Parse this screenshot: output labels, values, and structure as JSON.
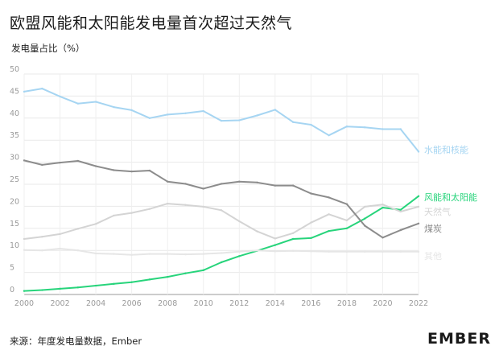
{
  "title": "欧盟风能和太阳能发电量首次超过天然气",
  "subtitle": "发电量占比（%）",
  "source": "来源：年度发电量数据，Ember",
  "logo": "EMBER",
  "chart_data": {
    "type": "line",
    "title": "欧盟风能和太阳能发电量首次超过天然气",
    "ylabel": "发电量占比（%）",
    "xlabel": "",
    "x": [
      2000,
      2001,
      2002,
      2003,
      2004,
      2005,
      2006,
      2007,
      2008,
      2009,
      2010,
      2011,
      2012,
      2013,
      2014,
      2015,
      2016,
      2017,
      2018,
      2019,
      2020,
      2021,
      2022
    ],
    "xticks": [
      2000,
      2002,
      2004,
      2006,
      2008,
      2010,
      2012,
      2014,
      2016,
      2018,
      2020,
      2022
    ],
    "yticks": [
      0,
      5,
      10,
      15,
      20,
      25,
      30,
      35,
      40,
      45,
      50
    ],
    "ylim": [
      0,
      50
    ],
    "xlim": [
      2000,
      2022
    ],
    "grid": true,
    "series": [
      {
        "name": "水能和核能",
        "color": "#a6d5f2",
        "values": [
          46.0,
          46.7,
          44.9,
          43.3,
          43.7,
          42.5,
          41.8,
          40.0,
          40.8,
          41.1,
          41.6,
          39.4,
          39.5,
          40.6,
          41.9,
          39.1,
          38.5,
          36.1,
          38.1,
          37.9,
          37.5,
          37.5,
          32.4
        ]
      },
      {
        "name": "风能和太阳能",
        "color": "#27d47b",
        "values": [
          0.8,
          1.0,
          1.3,
          1.6,
          2.0,
          2.4,
          2.8,
          3.4,
          4.0,
          4.8,
          5.5,
          7.3,
          8.7,
          9.9,
          11.2,
          12.6,
          12.8,
          14.4,
          15.0,
          17.2,
          19.7,
          19.2,
          22.3
        ]
      },
      {
        "name": "天然气",
        "color": "#d4d4d4",
        "values": [
          12.6,
          13.1,
          13.7,
          14.9,
          16.0,
          17.9,
          18.5,
          19.4,
          20.6,
          20.3,
          19.9,
          19.1,
          16.6,
          14.3,
          12.7,
          13.9,
          16.3,
          18.2,
          16.8,
          19.9,
          20.4,
          18.8,
          19.9
        ]
      },
      {
        "name": "煤炭",
        "color": "#8c8c8c",
        "values": [
          30.4,
          29.4,
          29.9,
          30.3,
          29.1,
          28.2,
          27.9,
          28.1,
          25.6,
          25.1,
          24.0,
          25.1,
          25.6,
          25.4,
          24.7,
          24.7,
          22.9,
          22.0,
          20.5,
          15.6,
          12.9,
          14.6,
          16.1
        ]
      },
      {
        "name": "其他",
        "color": "#e6e6e6",
        "values": [
          10.1,
          10.0,
          10.4,
          10.0,
          9.3,
          9.2,
          9.0,
          9.2,
          9.2,
          9.1,
          9.2,
          9.4,
          9.7,
          10.0,
          9.8,
          9.9,
          9.8,
          9.7,
          9.7,
          9.7,
          9.7,
          9.7,
          9.7
        ]
      }
    ]
  }
}
